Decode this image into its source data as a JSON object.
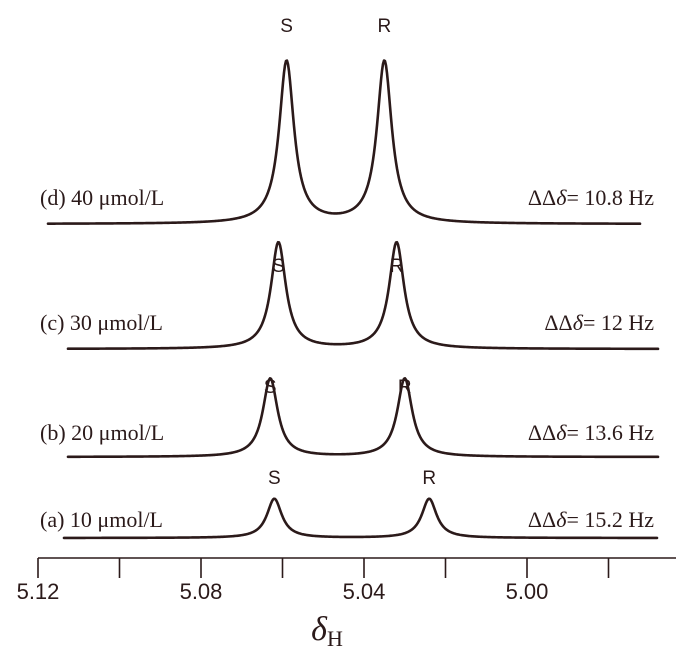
{
  "chart_data": {
    "type": "line",
    "xlabel": "δ",
    "xlabel_sub": "H",
    "x_reversed": true,
    "xlim": [
      5.12,
      4.97
    ],
    "x_ticks": [
      5.12,
      5.1,
      5.08,
      5.06,
      5.04,
      5.02,
      5.0,
      4.98
    ],
    "x_tick_labels": [
      "5.12",
      "5.08",
      "5.04",
      "5.00"
    ],
    "x_tick_label_values": [
      5.12,
      5.08,
      5.04,
      5.0
    ],
    "series": [
      {
        "name": "(a) 10 μmol/L",
        "label_prefix": "(a) 10 ",
        "label_mu": "μ",
        "label_suffix": "mol/L",
        "peaks": [
          {
            "label": "S",
            "x": 5.062,
            "height": 0.07,
            "width": 0.0022
          },
          {
            "label": "R",
            "x": 5.024,
            "height": 0.07,
            "width": 0.0022
          }
        ],
        "delta_text": "= 15.2 Hz"
      },
      {
        "name": "(b) 20 μmol/L",
        "label_prefix": "(b) 20 ",
        "label_mu": "μ",
        "label_suffix": "mol/L",
        "peaks": [
          {
            "label": "S",
            "x": 5.063,
            "height": 0.14,
            "width": 0.0022
          },
          {
            "label": "R",
            "x": 5.03,
            "height": 0.14,
            "width": 0.0022
          }
        ],
        "delta_text": "= 13.6 Hz"
      },
      {
        "name": "(c) 30 μmol/L",
        "label_prefix": "(c) 30 ",
        "label_mu": "μ",
        "label_suffix": "mol/L",
        "peaks": [
          {
            "label": "S",
            "x": 5.061,
            "height": 0.19,
            "width": 0.0022
          },
          {
            "label": "R",
            "x": 5.032,
            "height": 0.19,
            "width": 0.0022
          }
        ],
        "delta_text": "= 12 Hz"
      },
      {
        "name": "(d) 40 μmol/L",
        "label_prefix": "(d) 40 ",
        "label_mu": "μ",
        "label_suffix": "mol/L",
        "peaks": [
          {
            "label": "S",
            "x": 5.059,
            "height": 0.29,
            "width": 0.0022
          },
          {
            "label": "R",
            "x": 5.035,
            "height": 0.29,
            "width": 0.0022
          }
        ],
        "delta_text": "= 10.8 Hz"
      }
    ],
    "delta_symbol": "ΔΔ",
    "delta_var": "δ"
  }
}
